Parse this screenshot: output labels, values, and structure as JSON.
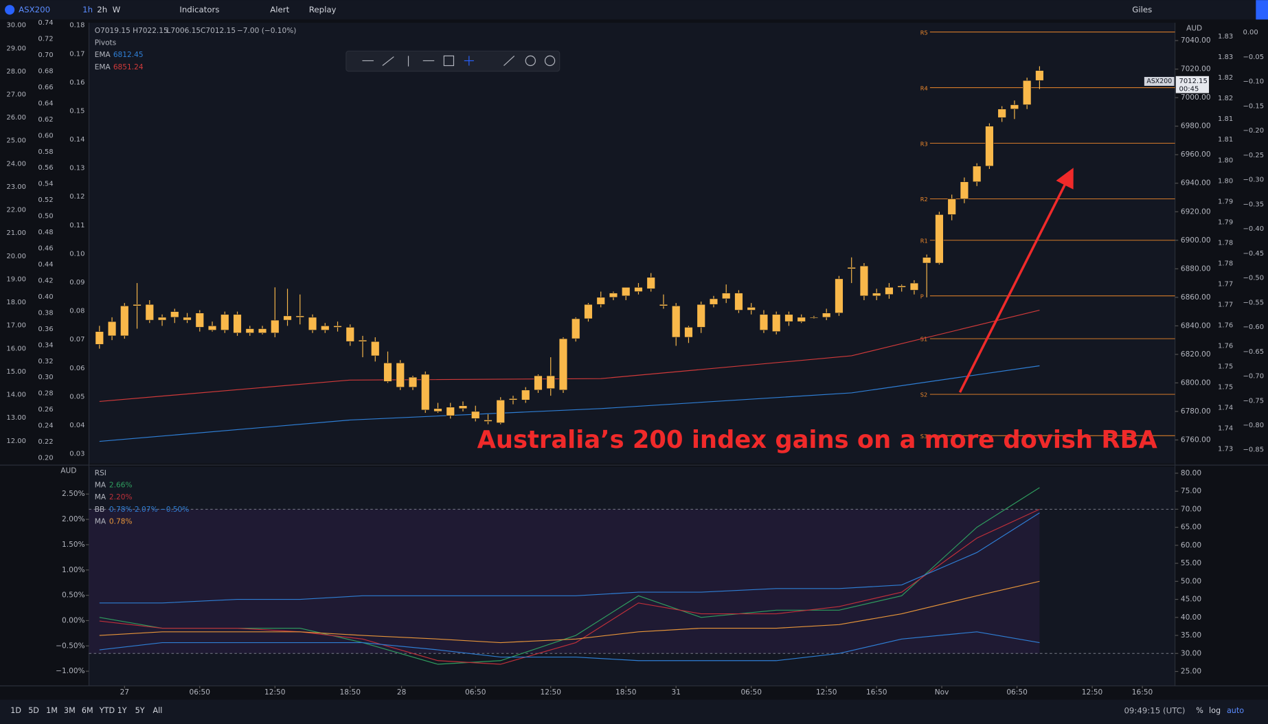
{
  "toolbar": {
    "symbol": "ASX200",
    "intervals": [
      "1h",
      "2h",
      "W"
    ],
    "items": [
      "Indicators",
      "Alert",
      "Replay"
    ],
    "user": "Giles"
  },
  "legend": {
    "ohlc": [
      "O7019.15",
      "H7022.15",
      "L7006.15",
      "C7012.15",
      "−7.00 (−0.10%)"
    ],
    "pivots": "Pivots"
  },
  "price_tag": {
    "symbol": "ASX200",
    "price": "7012.15",
    "countdown": "00:45",
    "currency": "AUD"
  },
  "annotation": "Australia’s 200 index gains on a more dovish RBA",
  "chart_data": {
    "type": "candlestick",
    "color": "#f9b84a",
    "candles": [
      [
        6836,
        6840,
        6824,
        6827
      ],
      [
        6833,
        6846,
        6830,
        6843
      ],
      [
        6833,
        6856,
        6831,
        6854
      ],
      [
        6854,
        6870,
        6838,
        6855
      ],
      [
        6855,
        6858,
        6842,
        6844
      ],
      [
        6844,
        6848,
        6840,
        6846
      ],
      [
        6846,
        6852,
        6842,
        6850
      ],
      [
        6846,
        6849,
        6842,
        6844
      ],
      [
        6839,
        6851,
        6836,
        6849
      ],
      [
        6840,
        6843,
        6836,
        6837
      ],
      [
        6837,
        6850,
        6835,
        6848
      ],
      [
        6848,
        6850,
        6833,
        6835
      ],
      [
        6835,
        6840,
        6833,
        6838
      ],
      [
        6838,
        6840,
        6834,
        6835
      ],
      [
        6835,
        6867,
        6832,
        6844
      ],
      [
        6844,
        6866,
        6840,
        6847
      ],
      [
        6847,
        6862,
        6841,
        6846
      ],
      [
        6846,
        6848,
        6835,
        6837
      ],
      [
        6837,
        6842,
        6835,
        6840
      ],
      [
        6840,
        6843,
        6836,
        6839
      ],
      [
        6839,
        6841,
        6826,
        6829
      ],
      [
        6830,
        6833,
        6818,
        6829
      ],
      [
        6829,
        6832,
        6815,
        6819
      ],
      [
        6814,
        6822,
        6800,
        6801
      ],
      [
        6814,
        6816,
        6795,
        6797
      ],
      [
        6797,
        6805,
        6795,
        6804
      ],
      [
        6806,
        6808,
        6779,
        6781
      ],
      [
        6782,
        6786,
        6779,
        6780
      ],
      [
        6777,
        6786,
        6775,
        6783
      ],
      [
        6784,
        6787,
        6780,
        6782
      ],
      [
        6780,
        6784,
        6773,
        6775
      ],
      [
        6774,
        6778,
        6771,
        6773
      ],
      [
        6772,
        6790,
        6771,
        6788
      ],
      [
        6788,
        6791,
        6785,
        6789
      ],
      [
        6788,
        6797,
        6786,
        6795
      ],
      [
        6795,
        6806,
        6793,
        6805
      ],
      [
        6796,
        6818,
        6791,
        6805
      ],
      [
        6795,
        6832,
        6793,
        6831
      ],
      [
        6831,
        6846,
        6829,
        6845
      ],
      [
        6845,
        6856,
        6843,
        6855
      ],
      [
        6855,
        6864,
        6853,
        6860
      ],
      [
        6860,
        6864,
        6858,
        6863
      ],
      [
        6861,
        6866,
        6858,
        6867
      ],
      [
        6864,
        6870,
        6862,
        6867
      ],
      [
        6866,
        6877,
        6864,
        6874
      ],
      [
        6855,
        6862,
        6852,
        6854
      ],
      [
        6854,
        6856,
        6826,
        6832
      ],
      [
        6832,
        6840,
        6828,
        6839
      ],
      [
        6839,
        6857,
        6835,
        6855
      ],
      [
        6855,
        6861,
        6853,
        6859
      ],
      [
        6859,
        6869,
        6856,
        6863
      ],
      [
        6863,
        6865,
        6849,
        6851
      ],
      [
        6851,
        6856,
        6848,
        6853
      ],
      [
        6848,
        6851,
        6835,
        6837
      ],
      [
        6836,
        6850,
        6834,
        6848
      ],
      [
        6843,
        6850,
        6840,
        6848
      ],
      [
        6846,
        6848,
        6842,
        6843
      ],
      [
        6846,
        6847,
        6845,
        6846
      ],
      [
        6846,
        6852,
        6844,
        6849
      ],
      [
        6849,
        6875,
        6847,
        6873
      ],
      [
        6880,
        6888,
        6870,
        6881
      ],
      [
        6882,
        6884,
        6858,
        6861
      ],
      [
        6861,
        6866,
        6858,
        6863
      ],
      [
        6862,
        6870,
        6859,
        6867
      ],
      [
        6867,
        6869,
        6864,
        6868
      ],
      [
        6865,
        6872,
        6862,
        6870
      ],
      [
        6884,
        6890,
        6860,
        6888
      ],
      [
        6884,
        6920,
        6883,
        6918
      ],
      [
        6918,
        6932,
        6914,
        6929
      ],
      [
        6929,
        6944,
        6926,
        6941
      ],
      [
        6941,
        6954,
        6938,
        6952
      ],
      [
        6952,
        6982,
        6950,
        6980
      ],
      [
        6986,
        6994,
        6983,
        6992
      ],
      [
        6992,
        6998,
        6985,
        6995
      ],
      [
        6995,
        7014,
        6992,
        7012
      ],
      [
        7019,
        7022,
        7006,
        7012
      ]
    ],
    "series": [
      {
        "name": "EMA",
        "value_label": "6812.45",
        "color": "#2f7fd6",
        "x": [
          0,
          20,
          40,
          60,
          75
        ],
        "values": [
          6759,
          6774,
          6782,
          6793,
          6812
        ]
      },
      {
        "name": "EMA",
        "value_label": "6851.24",
        "color": "#d13a3a",
        "x": [
          0,
          20,
          40,
          60,
          75
        ],
        "values": [
          6787,
          6802,
          6803,
          6819,
          6851
        ]
      }
    ],
    "pivots": {
      "color": "#f0892b",
      "levels": [
        {
          "label": "R5",
          "value": 7046
        },
        {
          "label": "R4",
          "value": 7007
        },
        {
          "label": "R3",
          "value": 6968
        },
        {
          "label": "R2",
          "value": 6929
        },
        {
          "label": "R1",
          "value": 6900
        },
        {
          "label": "P",
          "value": 6861
        },
        {
          "label": "S1",
          "value": 6831
        },
        {
          "label": "S2",
          "value": 6792
        },
        {
          "label": "S3",
          "value": 6763
        }
      ]
    },
    "ylim": [
      6743.5,
      7052.5
    ],
    "yticks": [
      {
        "value": 6760,
        "label": "6760.00"
      },
      {
        "value": 6780,
        "label": "6780.00"
      },
      {
        "value": 6800,
        "label": "6800.00"
      },
      {
        "value": 6820,
        "label": "6820.00"
      },
      {
        "value": 6840,
        "label": "6840.00"
      },
      {
        "value": 6860,
        "label": "6860.00"
      },
      {
        "value": 6880,
        "label": "6880.00"
      },
      {
        "value": 6900,
        "label": "6900.00"
      },
      {
        "value": 6920,
        "label": "6920.00"
      },
      {
        "value": 6940,
        "label": "6940.00"
      },
      {
        "value": 6960,
        "label": "6960.00"
      },
      {
        "value": 6980,
        "label": "6980.00"
      },
      {
        "value": 7000,
        "label": "7000.00"
      },
      {
        "value": 7020,
        "label": "7020.00"
      },
      {
        "value": 7040,
        "label": "7040.00"
      }
    ],
    "xticks": [
      {
        "value": 2,
        "label": "27"
      },
      {
        "value": 8,
        "label": "06:50"
      },
      {
        "value": 14,
        "label": "12:50"
      },
      {
        "value": 20,
        "label": "18:50"
      },
      {
        "value": 24.1,
        "label": "28"
      },
      {
        "value": 30,
        "label": "06:50"
      },
      {
        "value": 36,
        "label": "12:50"
      },
      {
        "value": 42,
        "label": "18:50"
      },
      {
        "value": 46,
        "label": "31"
      },
      {
        "value": 52,
        "label": "06:50"
      },
      {
        "value": 58,
        "label": "12:50"
      },
      {
        "value": 62,
        "label": "16:50"
      },
      {
        "value": 67.2,
        "label": "Nov"
      },
      {
        "value": 73.2,
        "label": "06:50"
      },
      {
        "value": 79.2,
        "label": "12:50"
      },
      {
        "value": 83.2,
        "label": "16:50"
      }
    ]
  },
  "rsi": {
    "type": "line",
    "title": "RSI",
    "currency": "AUD",
    "ylim": [
      21,
      81.8
    ],
    "yticks": [
      {
        "value": 25,
        "label": "25.00"
      },
      {
        "value": 30,
        "label": "30.00"
      },
      {
        "value": 35,
        "label": "35.00"
      },
      {
        "value": 40,
        "label": "40.00"
      },
      {
        "value": 45,
        "label": "45.00"
      },
      {
        "value": 50,
        "label": "50.00"
      },
      {
        "value": 55,
        "label": "55.00"
      },
      {
        "value": 60,
        "label": "60.00"
      },
      {
        "value": 65,
        "label": "65.00"
      },
      {
        "value": 70,
        "label": "70.00"
      },
      {
        "value": 75,
        "label": "75.00"
      },
      {
        "value": 80,
        "label": "80.00"
      }
    ],
    "pct_ylim": [
      -1.29,
      3.04
    ],
    "pct_ticks": [
      {
        "value": -1,
        "label": "−1.00%"
      },
      {
        "value": -0.5,
        "label": "−0.50%"
      },
      {
        "value": 0,
        "label": "0.00%"
      },
      {
        "value": 0.5,
        "label": "0.50%"
      },
      {
        "value": 1,
        "label": "1.00%"
      },
      {
        "value": 1.5,
        "label": "1.50%"
      },
      {
        "value": 2,
        "label": "2.00%"
      },
      {
        "value": 2.5,
        "label": "2.50%"
      }
    ],
    "bands": [
      70,
      30
    ],
    "x": [
      0,
      5,
      11,
      16,
      21,
      27,
      32,
      38,
      43,
      48,
      54,
      59,
      64,
      70,
      75
    ],
    "series": [
      {
        "name": "MA",
        "value_label": "2.66%",
        "color": "#2f9e5f",
        "values": [
          40,
          37,
          37,
          37,
          33,
          27,
          28,
          35,
          46,
          40,
          42,
          42,
          46,
          65,
          76
        ]
      },
      {
        "name": "MA",
        "value_label": "2.20%",
        "color": "#c0303a",
        "values": [
          39,
          37,
          37,
          36,
          34,
          28,
          27,
          33,
          44,
          41,
          41,
          43,
          47,
          62,
          70
        ]
      },
      {
        "name": "BB",
        "value_label": "0.78%  2.07%  −0.50%",
        "color": "#2f7fd6",
        "values": [
          44,
          44,
          45,
          45,
          46,
          46,
          46,
          46,
          47,
          47,
          48,
          48,
          49,
          58,
          69
        ],
        "lower": [
          31,
          33,
          33,
          33,
          33,
          31,
          29,
          29,
          28,
          28,
          28,
          30,
          34,
          36,
          33
        ]
      },
      {
        "name": "MA",
        "value_label": "0.78%",
        "color": "#e8963a",
        "values": [
          35,
          36,
          36,
          36,
          35,
          34,
          33,
          34,
          36,
          37,
          37,
          38,
          41,
          46,
          50
        ]
      }
    ]
  },
  "left_axes": [
    [
      "30.00",
      "29.00",
      "28.00",
      "27.00",
      "26.00",
      "25.00",
      "24.00",
      "23.00",
      "22.00",
      "21.00",
      "20.00",
      "19.00",
      "18.00",
      "17.00",
      "16.00",
      "15.00",
      "14.00",
      "13.00",
      "12.00"
    ],
    [
      "0.74",
      "0.72",
      "0.70",
      "0.68",
      "0.66",
      "0.64",
      "0.62",
      "0.60",
      "0.58",
      "0.56",
      "0.54",
      "0.52",
      "0.50",
      "0.48",
      "0.46",
      "0.44",
      "0.42",
      "0.40",
      "0.38",
      "0.36",
      "0.34",
      "0.32",
      "0.30",
      "0.28",
      "0.26",
      "0.24",
      "0.22",
      "0.20"
    ],
    [
      "0.18",
      "0.17",
      "0.16",
      "0.15",
      "0.14",
      "0.13",
      "0.12",
      "0.11",
      "0.10",
      "0.09",
      "0.08",
      "0.07",
      "0.06",
      "0.05",
      "0.04",
      "0.03"
    ]
  ],
  "right_axes": [
    [
      "1.83",
      "1.83",
      "1.82",
      "1.82",
      "1.81",
      "1.81",
      "1.80",
      "1.80",
      "1.79",
      "1.79",
      "1.78",
      "1.78",
      "1.77",
      "1.77",
      "1.76",
      "1.76",
      "1.75",
      "1.75",
      "1.74",
      "1.74",
      "1.73"
    ],
    [
      "0.00",
      "−0.05",
      "−0.10",
      "−0.15",
      "−0.20",
      "−0.25",
      "−0.30",
      "−0.35",
      "−0.40",
      "−0.45",
      "−0.50",
      "−0.55",
      "−0.60",
      "−0.65",
      "−0.70",
      "−0.75",
      "−0.80",
      "−0.85"
    ]
  ],
  "bottom": {
    "ranges": [
      "1D",
      "5D",
      "1M",
      "3M",
      "6M",
      "YTD",
      "1Y",
      "5Y",
      "All"
    ],
    "time": "09:49:15 (UTC)",
    "options": [
      "%",
      "log",
      "auto"
    ]
  }
}
